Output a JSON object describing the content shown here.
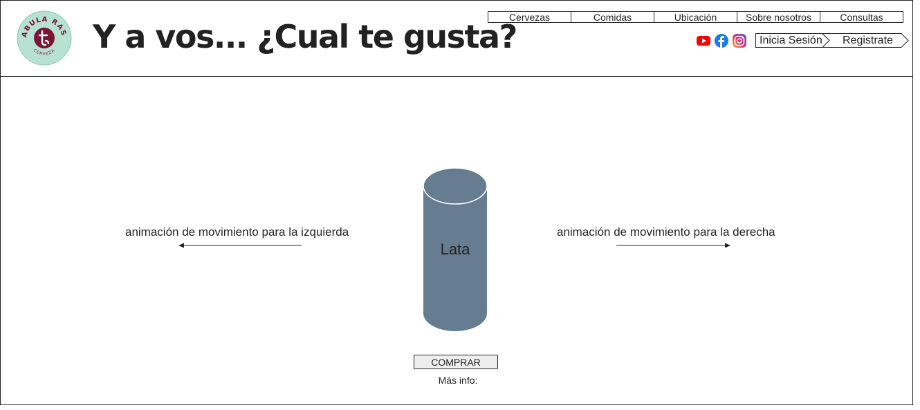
{
  "brand": {
    "name": "TABULA RASA",
    "sub": "CERVEZA",
    "colors": {
      "badge_bg": "#b7e2d3",
      "badge_ring": "#8fc8b4",
      "mark": "#7a1535"
    }
  },
  "header": {
    "title": "Y a vos... ¿Cual te gusta?"
  },
  "nav": {
    "items": [
      "Cervezas",
      "Comidas",
      "Ubicación",
      "Sobre nosotros",
      "Consultas"
    ]
  },
  "social": {
    "youtube": {
      "icon": "youtube-icon",
      "color": "#ff0000"
    },
    "facebook": {
      "icon": "facebook-icon",
      "color": "#1877f2"
    },
    "instagram": {
      "icon": "instagram-icon",
      "color": "#d62976"
    }
  },
  "auth": {
    "login": "Inicia Sesión",
    "register": "Registrate"
  },
  "main": {
    "left_text": "animación de movimiento para la izquierda",
    "right_text": "animación de movimiento para la derecha",
    "can_label": "Lata",
    "can_color": "#667c91",
    "buy_label": "COMPRAR",
    "more_info": "Más info:"
  }
}
